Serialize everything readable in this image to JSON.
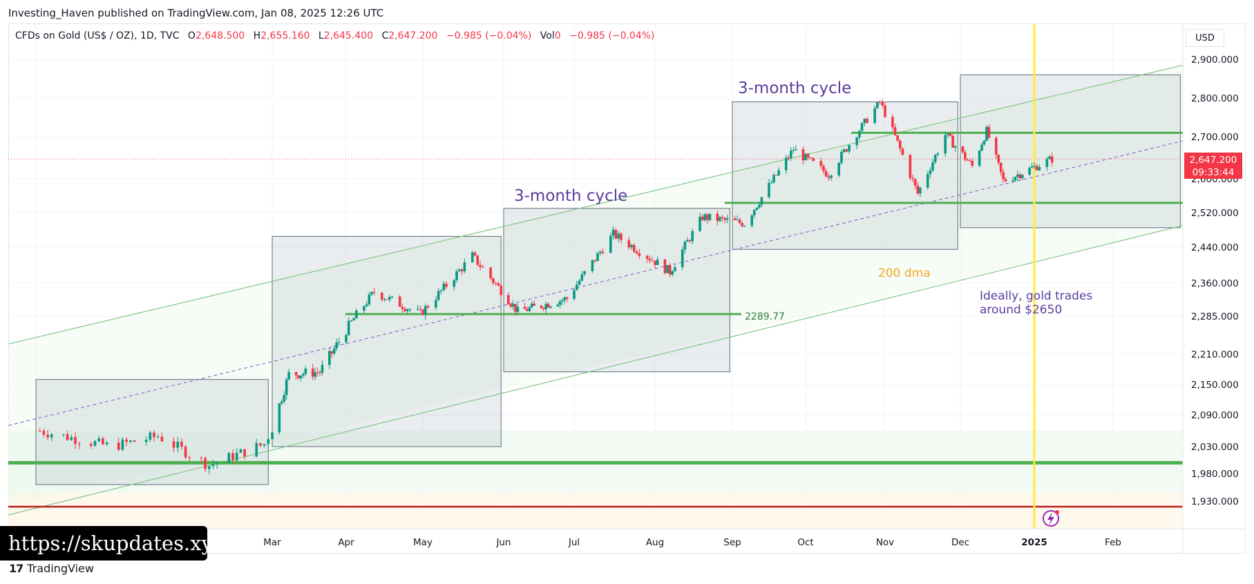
{
  "header": {
    "publisher_line": "Investing_Haven published on TradingView.com, Jan 08, 2025 12:26 UTC"
  },
  "legend": {
    "symbol": "CFDs on Gold (US$ / OZ), 1D, TVC",
    "open_label": "O",
    "open": "2,648.500",
    "high_label": "H",
    "high": "2,655.160",
    "low_label": "L",
    "low": "2,645.400",
    "close_label": "C",
    "close": "2,647.200",
    "change": "−0.985 (−0.04%)",
    "vol_label": "Vol",
    "vol": "0",
    "vol_change": "−0.985 (−0.04%)"
  },
  "price_axis": {
    "currency": "USD",
    "last_price": "2,647.200",
    "countdown": "09:33:44",
    "ticks": [
      "2,900.000",
      "2,800.000",
      "2,700.000",
      "2,600.000",
      "2,520.000",
      "2,440.000",
      "2,360.000",
      "2,285.000",
      "2,210.000",
      "2,150.000",
      "2,090.000",
      "2,030.000",
      "1,980.000",
      "1,930.000"
    ]
  },
  "time_axis": {
    "labels": [
      "Mar",
      "Apr",
      "May",
      "Jun",
      "Jul",
      "Aug",
      "Sep",
      "Oct",
      "Nov",
      "Dec",
      "2025",
      "Feb"
    ]
  },
  "annotations": {
    "cycle_label_1": "3-month cycle",
    "cycle_label_2": "3-month cycle",
    "level_label": "2289.77",
    "dma_label": "200 dma",
    "note_line1": "Ideally, gold trades",
    "note_line2": "around $2650"
  },
  "watermark": "https://skupdates.xyz",
  "brand": "TradingView",
  "colors": {
    "up": "#089981",
    "down": "#f23645",
    "level_line": "#4caf50",
    "channel_line": "#81c784",
    "red_line": "#b71c1c",
    "vertical_marker": "#ffeb3b",
    "cycle_text": "#5b3c9b",
    "dma_text": "#f5a623"
  },
  "chart_data": {
    "type": "candlestick",
    "title": "CFDs on Gold (US$ / OZ), 1D, TVC",
    "ylabel": "USD",
    "ylim": [
      1880,
      2960
    ],
    "ohlc_last": {
      "open": 2648.5,
      "high": 2655.16,
      "low": 2645.4,
      "close": 2647.2
    },
    "approx_close_path": [
      {
        "date": "2024-01-02",
        "close": 2060
      },
      {
        "date": "2024-01-20",
        "close": 2030
      },
      {
        "date": "2024-02-01",
        "close": 2050
      },
      {
        "date": "2024-02-14",
        "close": 1995
      },
      {
        "date": "2024-02-28",
        "close": 2035
      },
      {
        "date": "2024-03-08",
        "close": 2170
      },
      {
        "date": "2024-03-21",
        "close": 2175
      },
      {
        "date": "2024-04-12",
        "close": 2340
      },
      {
        "date": "2024-04-30",
        "close": 2290
      },
      {
        "date": "2024-05-20",
        "close": 2420
      },
      {
        "date": "2024-06-07",
        "close": 2295
      },
      {
        "date": "2024-06-28",
        "close": 2325
      },
      {
        "date": "2024-07-16",
        "close": 2470
      },
      {
        "date": "2024-08-07",
        "close": 2385
      },
      {
        "date": "2024-08-20",
        "close": 2510
      },
      {
        "date": "2024-09-06",
        "close": 2495
      },
      {
        "date": "2024-09-26",
        "close": 2670
      },
      {
        "date": "2024-10-10",
        "close": 2610
      },
      {
        "date": "2024-10-30",
        "close": 2790
      },
      {
        "date": "2024-11-14",
        "close": 2565
      },
      {
        "date": "2024-11-25",
        "close": 2705
      },
      {
        "date": "2024-12-06",
        "close": 2630
      },
      {
        "date": "2024-12-12",
        "close": 2715
      },
      {
        "date": "2024-12-19",
        "close": 2595
      },
      {
        "date": "2024-12-31",
        "close": 2625
      },
      {
        "date": "2025-01-08",
        "close": 2647.2
      }
    ],
    "horizontal_levels": [
      2710,
      2543,
      2289.77,
      2000,
      1920
    ],
    "cycle_boxes": [
      {
        "from": "2024-01-01",
        "to": "2024-02-29",
        "low": 1960,
        "high": 2160
      },
      {
        "from": "2024-03-01",
        "to": "2024-05-31",
        "low": 2030,
        "high": 2465
      },
      {
        "from": "2024-06-01",
        "to": "2024-08-31",
        "low": 2175,
        "high": 2530
      },
      {
        "from": "2024-09-01",
        "to": "2024-11-30",
        "low": 2435,
        "high": 2790
      },
      {
        "from": "2024-12-01",
        "to": "2025-02-28",
        "low": 2485,
        "high": 2940
      }
    ],
    "vertical_marker": "2025-01-01",
    "grid": true
  }
}
